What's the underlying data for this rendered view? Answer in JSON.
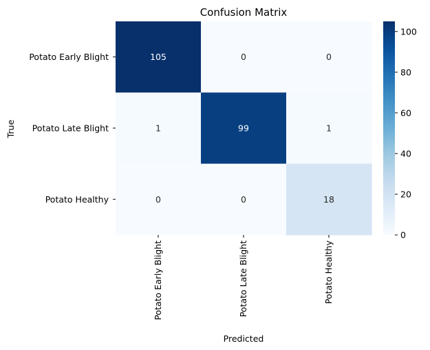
{
  "chart_data": {
    "type": "heatmap",
    "title": "Confusion Matrix",
    "xlabel": "Predicted",
    "ylabel": "True",
    "x_categories": [
      "Potato Early Blight",
      "Potato Late Blight",
      "Potato Healthy"
    ],
    "y_categories": [
      "Potato Early Blight",
      "Potato Late Blight",
      "Potato Healthy"
    ],
    "values": [
      [
        105,
        0,
        0
      ],
      [
        1,
        99,
        1
      ],
      [
        0,
        0,
        18
      ]
    ],
    "colormap": "Blues",
    "colorbar": {
      "min": 0,
      "max": 105,
      "ticks": [
        0,
        20,
        40,
        60,
        80,
        100
      ]
    },
    "annotations": true
  }
}
